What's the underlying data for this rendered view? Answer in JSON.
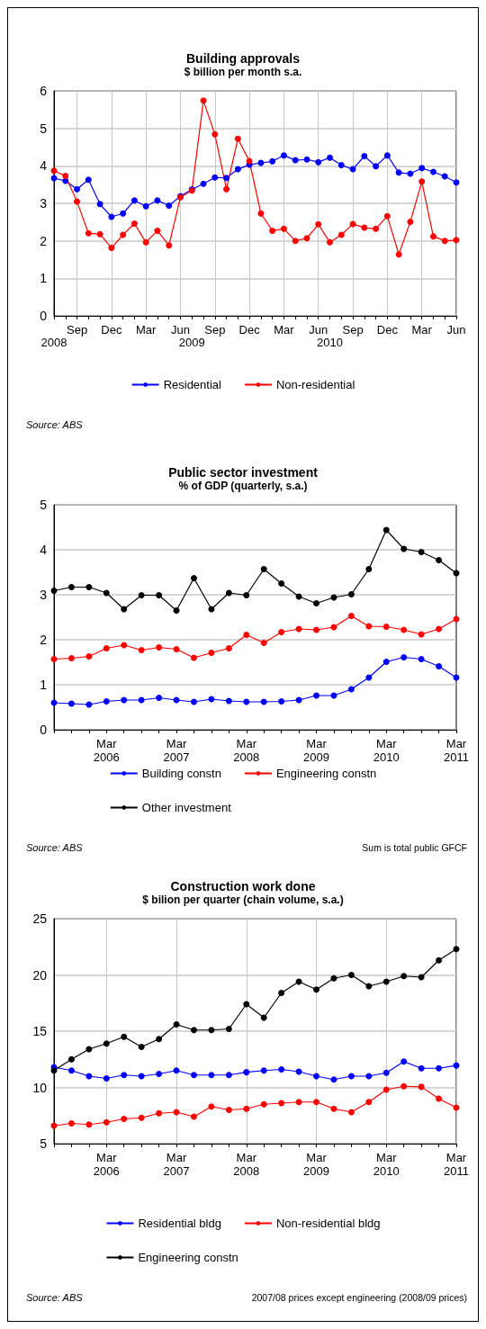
{
  "chart_data": [
    {
      "type": "line",
      "title": "Building approvals",
      "subtitle": "$ billion per month s.a.",
      "categories": [
        "2008",
        null,
        "Sep",
        null,
        null,
        "Dec",
        null,
        null,
        "Mar",
        null,
        null,
        "Jun",
        "2009",
        null,
        "Sep",
        null,
        null,
        "Dec",
        null,
        null,
        "Mar",
        null,
        null,
        "Jun",
        "2010",
        null,
        "Sep",
        null,
        null,
        "Dec",
        null,
        null,
        "Mar",
        null,
        null,
        "Jun"
      ],
      "series": [
        {
          "name": "Residential",
          "color": "#0000ff",
          "values": [
            3.67,
            3.6,
            3.38,
            3.63,
            2.98,
            2.64,
            2.73,
            3.08,
            2.92,
            3.08,
            2.94,
            3.19,
            3.37,
            3.52,
            3.69,
            3.68,
            3.91,
            4.03,
            4.08,
            4.12,
            4.28,
            4.15,
            4.17,
            4.1,
            4.22,
            4.02,
            3.91,
            4.26,
            3.99,
            4.28,
            3.82,
            3.79,
            3.94,
            3.84,
            3.72,
            3.56
          ]
        },
        {
          "name": "Non-residential",
          "color": "#ff0000",
          "values": [
            3.87,
            3.73,
            3.05,
            2.2,
            2.18,
            1.81,
            2.16,
            2.46,
            1.96,
            2.27,
            1.88,
            3.16,
            3.34,
            5.74,
            4.84,
            3.38,
            4.72,
            4.13,
            2.73,
            2.27,
            2.32,
            2.0,
            2.07,
            2.44,
            1.96,
            2.16,
            2.45,
            2.35,
            2.32,
            2.66,
            1.64,
            2.51,
            3.58,
            2.12,
            2.0,
            2.02
          ]
        }
      ],
      "ylim": [
        0,
        6
      ],
      "yticks": [
        0,
        1,
        2,
        3,
        4,
        5,
        6
      ],
      "grid": true,
      "legend": "bottom",
      "marker": "circle",
      "line_style": "solid",
      "annotations": [
        "Source: ABS"
      ]
    },
    {
      "type": "line",
      "title": "Public sector investment",
      "subtitle": "% of GDP (quarterly, s.a.)",
      "categories": [
        null,
        null,
        null,
        "Mar\n2006",
        null,
        null,
        null,
        "Mar\n2007",
        null,
        null,
        null,
        "Mar\n2008",
        null,
        null,
        null,
        "Mar\n2009",
        null,
        null,
        null,
        "Mar\n2010",
        null,
        null,
        null,
        "Mar\n2011"
      ],
      "series": [
        {
          "name": "Building constn",
          "color": "#0000ff",
          "values": [
            0.6,
            0.58,
            0.56,
            0.63,
            0.66,
            0.66,
            0.71,
            0.66,
            0.62,
            0.68,
            0.64,
            0.62,
            0.62,
            0.63,
            0.66,
            0.76,
            0.76,
            0.9,
            1.16,
            1.51,
            1.61,
            1.57,
            1.41,
            1.16
          ]
        },
        {
          "name": "Engineering constn",
          "color": "#ff0000",
          "values": [
            1.57,
            1.59,
            1.63,
            1.81,
            1.88,
            1.77,
            1.83,
            1.79,
            1.6,
            1.71,
            1.81,
            2.11,
            1.93,
            2.17,
            2.24,
            2.22,
            2.28,
            2.53,
            2.3,
            2.29,
            2.22,
            2.12,
            2.24,
            2.46
          ]
        },
        {
          "name": "Other investment",
          "color": "#000000",
          "values": [
            3.09,
            3.17,
            3.17,
            3.04,
            2.68,
            2.99,
            2.99,
            2.65,
            3.37,
            2.68,
            3.04,
            2.99,
            3.57,
            3.25,
            2.96,
            2.81,
            2.94,
            3.01,
            3.57,
            4.44,
            4.02,
            3.95,
            3.77,
            3.48
          ]
        }
      ],
      "ylim": [
        0,
        5
      ],
      "yticks": [
        0,
        1,
        2,
        3,
        4,
        5
      ],
      "grid": "y",
      "legend": "bottom",
      "marker": "circle",
      "line_style": "solid",
      "annotations": [
        "Source: ABS",
        "Sum is total public GFCF"
      ]
    },
    {
      "type": "line",
      "title": "Construction work done",
      "subtitle": "$ bilion per quarter (chain volume, s.a.)",
      "categories": [
        null,
        null,
        null,
        "Mar\n2006",
        null,
        null,
        null,
        "Mar\n2007",
        null,
        null,
        null,
        "Mar\n2008",
        null,
        null,
        null,
        "Mar\n2009",
        null,
        null,
        null,
        "Mar\n2010",
        null,
        null,
        null,
        "Mar\n2011"
      ],
      "series": [
        {
          "name": "Residential bldg",
          "color": "#0000ff",
          "values": [
            11.8,
            11.5,
            11.0,
            10.8,
            11.1,
            11.0,
            11.2,
            11.5,
            11.1,
            11.1,
            11.1,
            11.35,
            11.5,
            11.6,
            11.4,
            11.0,
            10.7,
            11.0,
            11.0,
            11.3,
            12.3,
            11.7,
            11.7,
            11.95
          ]
        },
        {
          "name": "Non-residential bldg",
          "color": "#ff0000",
          "values": [
            6.6,
            6.8,
            6.7,
            6.9,
            7.2,
            7.3,
            7.7,
            7.8,
            7.4,
            8.3,
            8.0,
            8.1,
            8.5,
            8.6,
            8.7,
            8.7,
            8.1,
            7.8,
            8.7,
            9.8,
            10.1,
            10.05,
            9.0,
            8.2
          ]
        },
        {
          "name": "Engineering constn",
          "color": "#000000",
          "values": [
            11.5,
            12.5,
            13.4,
            13.9,
            14.5,
            13.6,
            14.3,
            15.6,
            15.1,
            15.1,
            15.2,
            17.4,
            16.2,
            18.4,
            19.4,
            18.7,
            19.7,
            20.0,
            19.0,
            19.4,
            19.9,
            19.8,
            21.3,
            22.3
          ]
        }
      ],
      "ylim": [
        5,
        25
      ],
      "yticks": [
        5,
        10,
        15,
        20,
        25
      ],
      "grid": true,
      "legend": "bottom",
      "marker": "circle",
      "line_style": "solid",
      "annotations": [
        "Source: ABS",
        "2007/08 prices except engineering (2008/09 prices)"
      ]
    }
  ]
}
